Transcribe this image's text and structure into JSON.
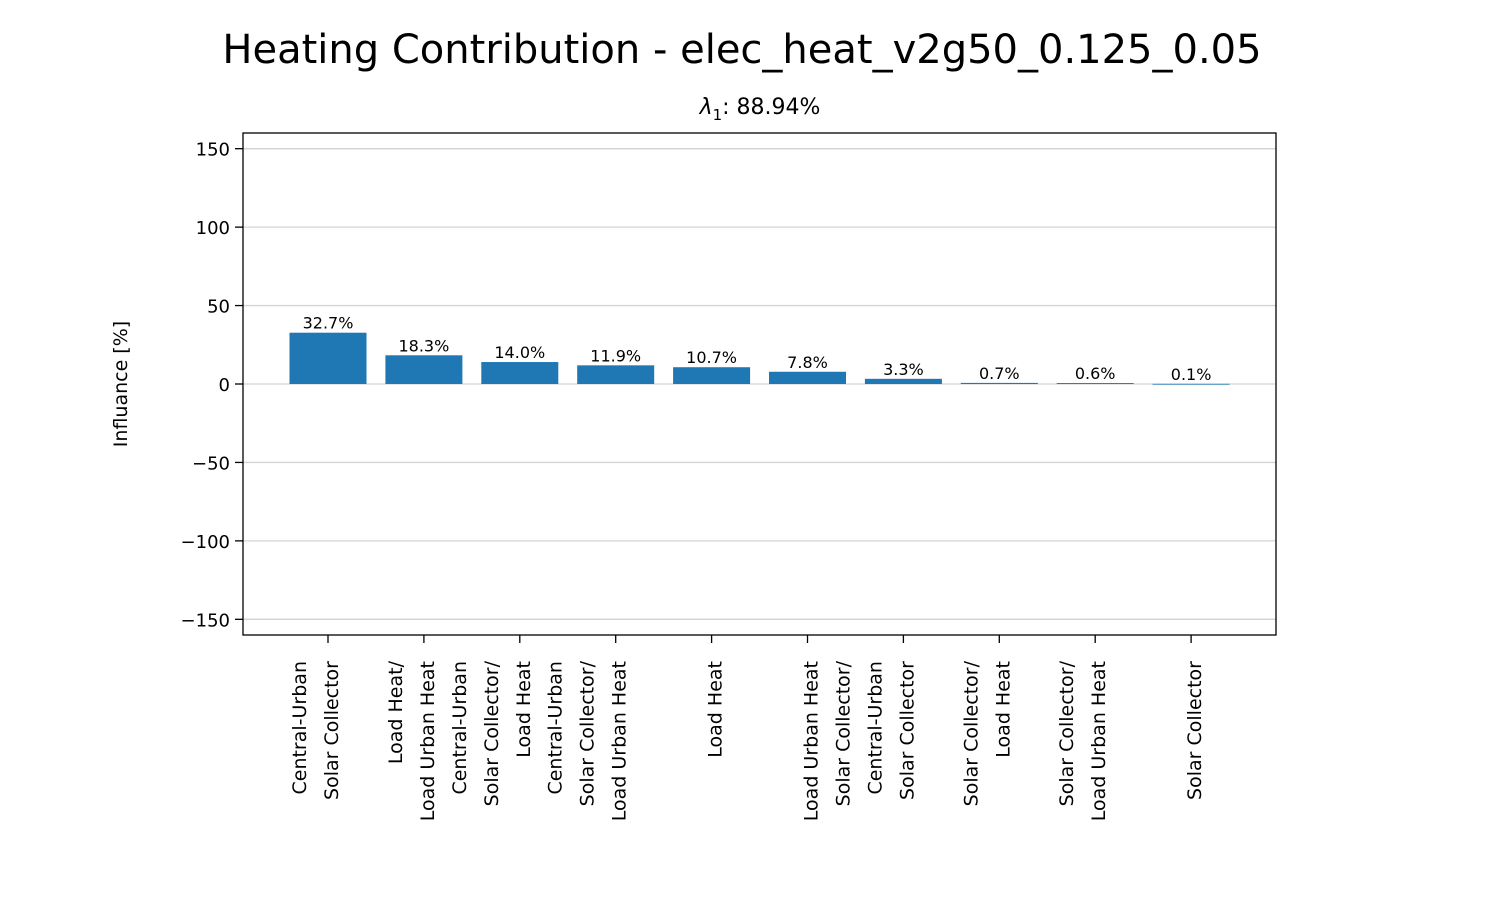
{
  "chart_data": {
    "type": "bar",
    "title": "Heating Contribution - elec_heat_v2g50_0.125_0.05",
    "subtitle": {
      "symbol": "λ",
      "subscript": "1",
      "text": ": 88.94%"
    },
    "ylabel": "Influance [%]",
    "xlabel": "",
    "ylim": [
      -160,
      160
    ],
    "yticks": [
      -150,
      -100,
      -50,
      0,
      50,
      100,
      150
    ],
    "ytick_labels": [
      "−150",
      "−100",
      "−50",
      "0",
      "50",
      "100",
      "150"
    ],
    "grid": "horizontal",
    "bar_color": "#1f77b4",
    "categories": [
      [
        "Central-Urban",
        "Solar Collector"
      ],
      [
        "Load Heat/",
        "Load Urban Heat"
      ],
      [
        "Central-Urban",
        "Solar Collector/",
        "Load Heat"
      ],
      [
        "Central-Urban",
        "Solar Collector/",
        "Load Urban Heat"
      ],
      [
        "Load Heat"
      ],
      [
        "Load Urban Heat"
      ],
      [
        "Solar Collector/",
        "Central-Urban",
        "Solar Collector"
      ],
      [
        "Solar Collector/",
        "Load Heat"
      ],
      [
        "Solar Collector/",
        "Load Urban Heat"
      ],
      [
        "Solar Collector"
      ]
    ],
    "values": [
      32.7,
      18.3,
      14.0,
      11.9,
      10.7,
      7.8,
      3.3,
      0.7,
      0.6,
      0.1
    ],
    "data_labels": [
      "32.7%",
      "18.3%",
      "14.0%",
      "11.9%",
      "10.7%",
      "7.8%",
      "3.3%",
      "0.7%",
      "0.6%",
      "0.1%"
    ]
  }
}
